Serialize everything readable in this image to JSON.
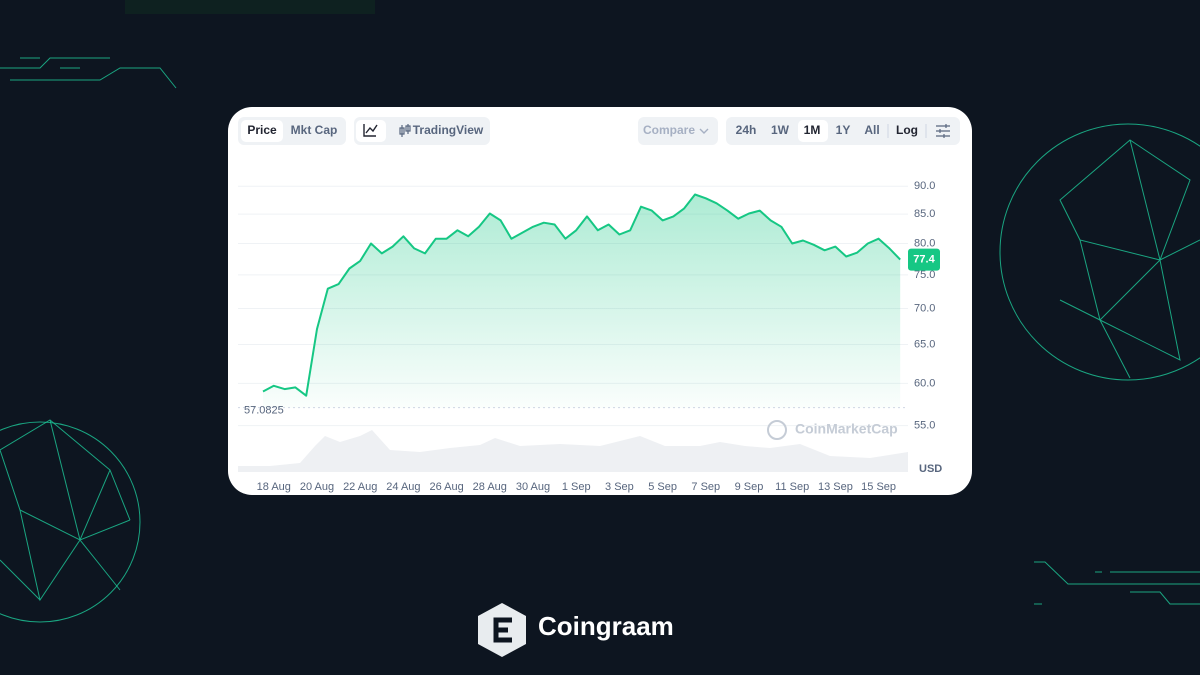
{
  "toolbar": {
    "price": "Price",
    "mkt_cap": "Mkt Cap",
    "tradingview": "TradingView",
    "compare": "Compare",
    "ranges": [
      "24h",
      "1W",
      "1M",
      "1Y",
      "All"
    ],
    "log": "Log"
  },
  "chart_data": {
    "type": "line",
    "color": "#16c784",
    "log_scale": true,
    "grid": true,
    "categories": [
      null,
      "18 Aug",
      null,
      null,
      null,
      "20 Aug",
      null,
      null,
      null,
      "22 Aug",
      null,
      null,
      null,
      "24 Aug",
      null,
      null,
      null,
      "26 Aug",
      null,
      null,
      null,
      "28 Aug",
      null,
      null,
      null,
      "30 Aug",
      null,
      null,
      null,
      "1 Sep",
      null,
      null,
      null,
      "3 Sep",
      null,
      null,
      null,
      "5 Sep",
      null,
      null,
      null,
      "7 Sep",
      null,
      null,
      null,
      "9 Sep",
      null,
      null,
      null,
      "11 Sep",
      null,
      null,
      null,
      "13 Sep",
      null,
      null,
      null,
      "15 Sep",
      null,
      null
    ],
    "values": [
      59.0,
      59.7,
      59.3,
      59.5,
      58.5,
      67.1,
      72.9,
      73.6,
      76.0,
      77.2,
      80.0,
      78.4,
      79.5,
      81.2,
      79.2,
      78.4,
      80.8,
      80.8,
      82.2,
      81.2,
      82.8,
      85.1,
      83.9,
      80.8,
      81.8,
      82.8,
      83.5,
      83.2,
      80.8,
      82.2,
      84.6,
      82.2,
      83.2,
      81.5,
      82.2,
      86.3,
      85.6,
      83.9,
      84.6,
      86.0,
      88.5,
      87.8,
      86.9,
      85.6,
      84.2,
      85.1,
      85.6,
      83.9,
      82.8,
      80.0,
      80.5,
      79.8,
      78.9,
      79.5,
      77.9,
      78.5,
      80.0,
      80.8,
      79.2,
      77.4
    ],
    "ylim": [
      50,
      95
    ],
    "yticks": [
      {
        "value": 55,
        "label": "55.0"
      },
      {
        "value": 60,
        "label": "60.0"
      },
      {
        "value": 65,
        "label": "65.0"
      },
      {
        "value": 70,
        "label": "70.0"
      },
      {
        "value": 75,
        "label": "75.0"
      },
      {
        "value": 80,
        "label": "80.0"
      },
      {
        "value": 85,
        "label": "85.0"
      },
      {
        "value": 90,
        "label": "90.0"
      }
    ],
    "y_axis_label": "USD",
    "watermark": "CoinMarketCap",
    "last_price": 77.4,
    "min_price": 57.0825
  },
  "brand": "Coingraam"
}
